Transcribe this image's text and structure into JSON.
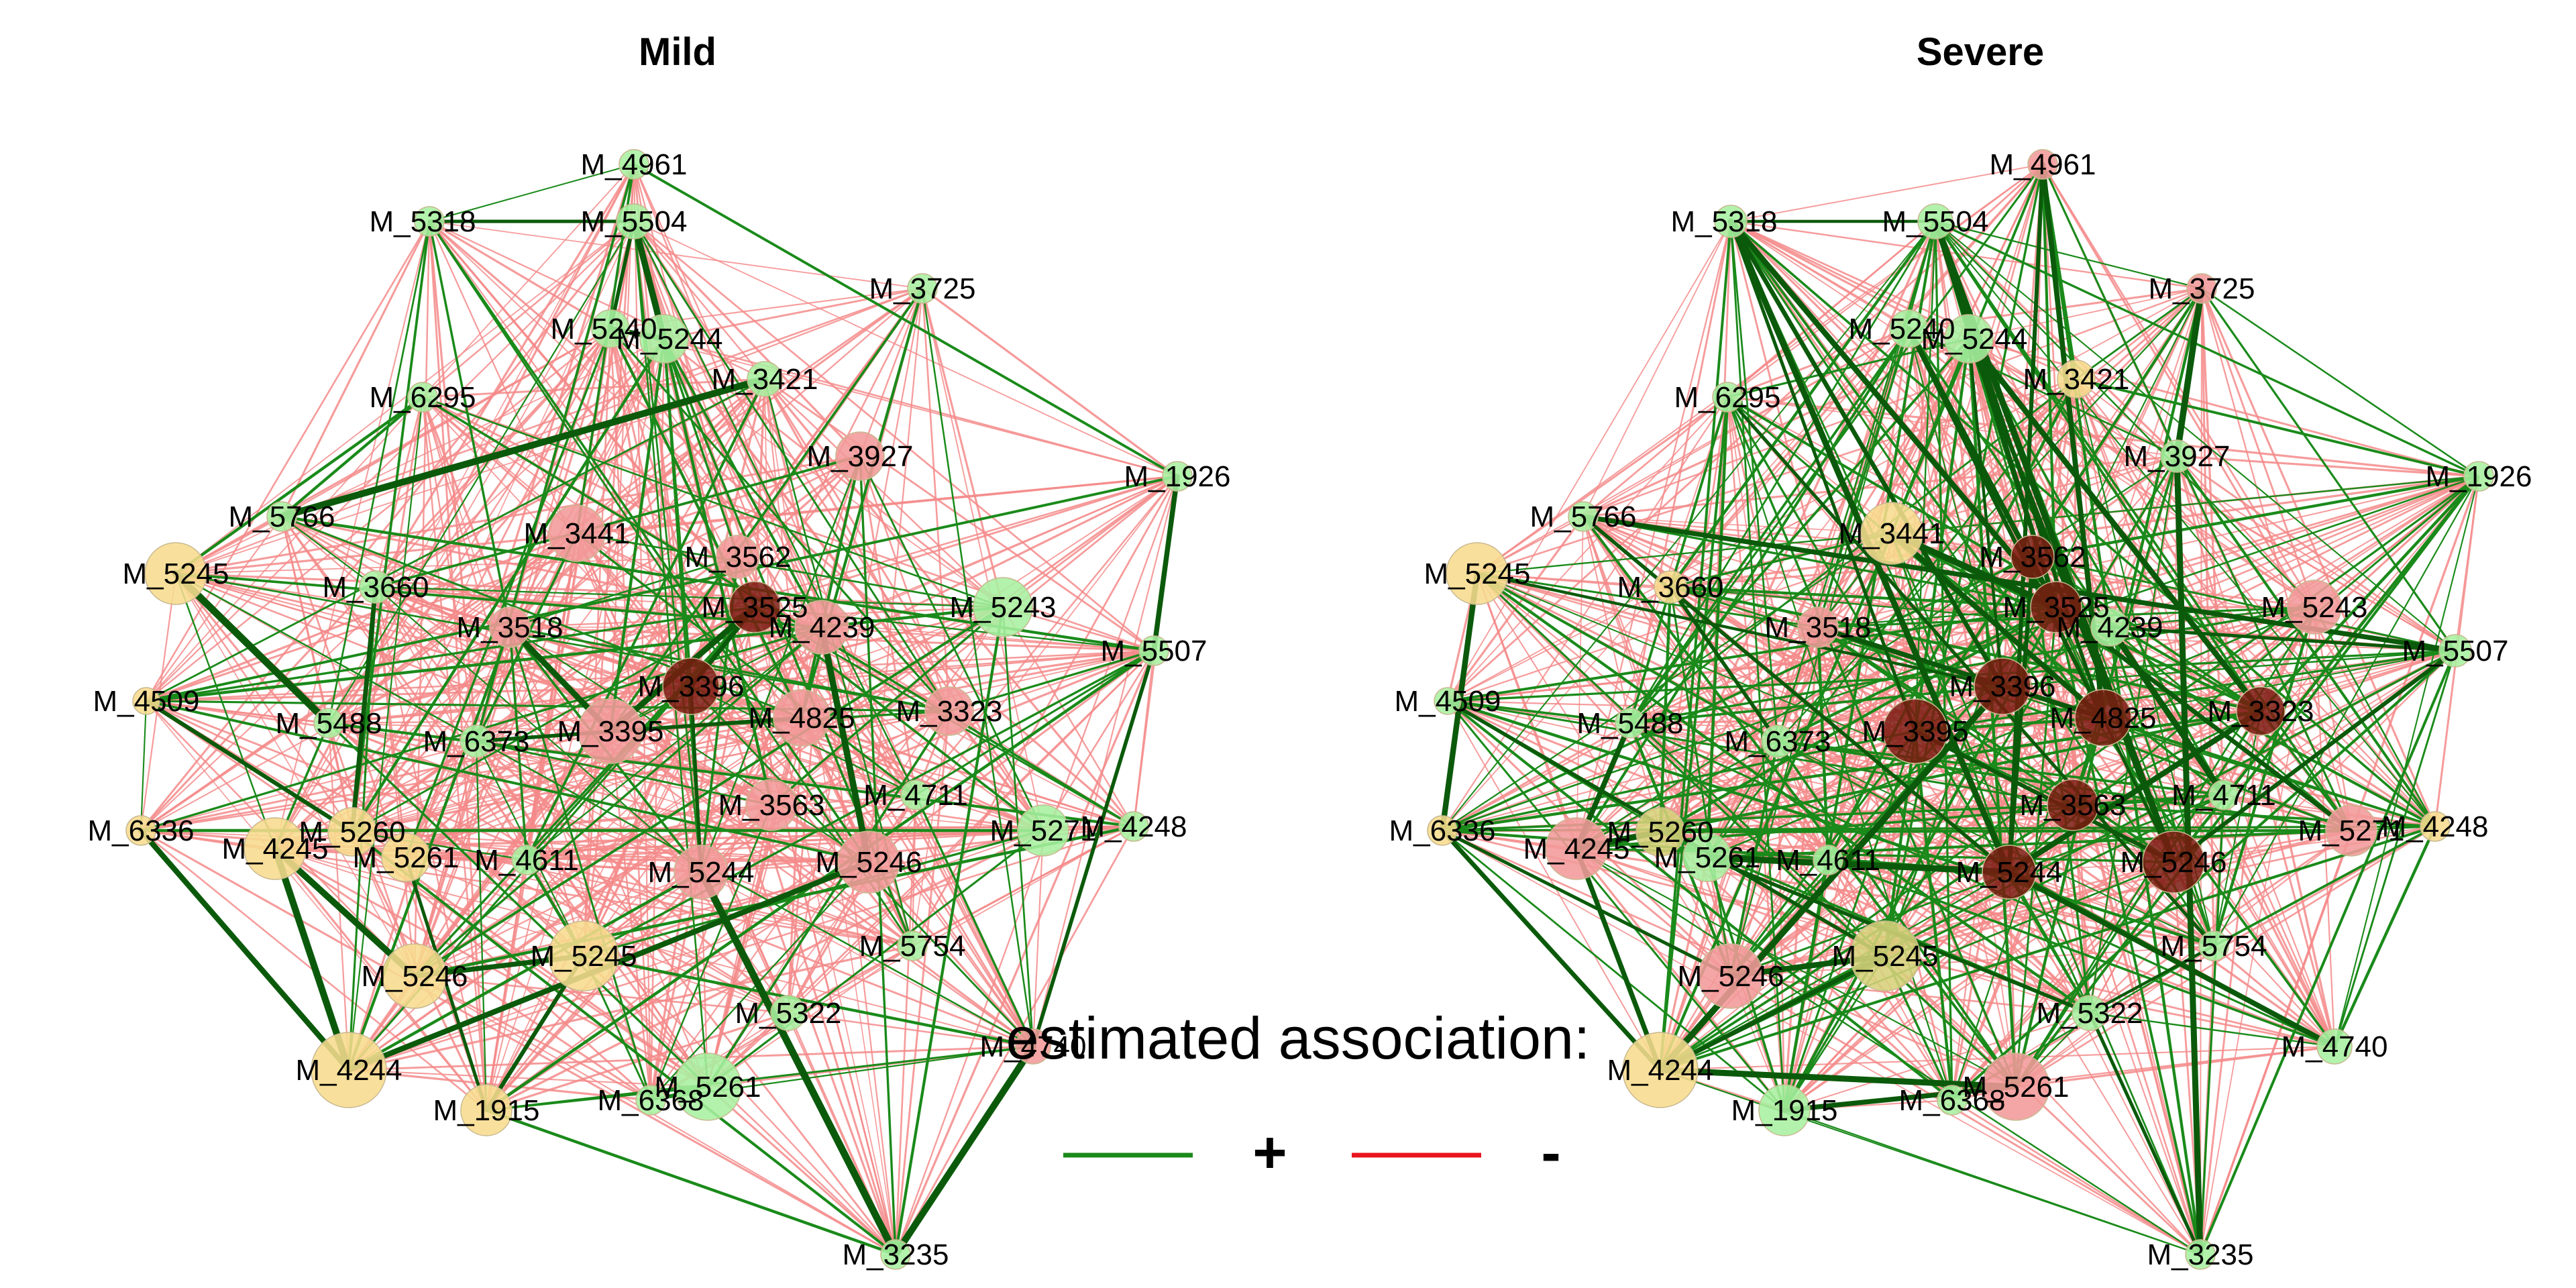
{
  "panels": [
    {
      "title": "Mild"
    },
    {
      "title": "Severe"
    }
  ],
  "legend": {
    "title": "estimated association:",
    "entries": [
      {
        "sign": "+",
        "color": "#1a8a1a"
      },
      {
        "sign": "-",
        "color": "#e8141e"
      }
    ]
  },
  "colors": {
    "positive_edge": "#1a8a1a",
    "positive_edge_strong": "#0b5a0b",
    "negative_edge": "#f48a8a",
    "node_green": "#a9f0a0",
    "node_yellow": "#f7dc8e",
    "node_red": "#f29a9a",
    "node_darkred": "#7a1a10",
    "node_olive": "#d6d07a"
  },
  "nodes": [
    "M_4961",
    "M_5318",
    "M_5504",
    "M_3725",
    "M_5240",
    "M_5244",
    "M_6295",
    "M_3421",
    "M_3927",
    "M_1926",
    "M_5766",
    "M_3441",
    "M_3562",
    "M_5245",
    "M_3660",
    "M_5243",
    "M_3525",
    "M_4239",
    "M_3518",
    "M_5507",
    "M_4509",
    "M_3396",
    "M_5488",
    "M_3395",
    "M_4825",
    "M_3323",
    "M_6373",
    "M_4711",
    "M_6336",
    "M_5260",
    "M_3563",
    "M_5271",
    "M_4248",
    "M_4245",
    "M_5261",
    "M_4611",
    "M_5244",
    "M_5246",
    "M_5754",
    "M_5246",
    "M_5245",
    "M_5322",
    "M_4740",
    "M_4244",
    "M_5261",
    "M_1915",
    "M_6368",
    "M_3235"
  ],
  "node_colors": {
    "mild": [
      "node_green",
      "node_green",
      "node_green",
      "node_green",
      "node_green",
      "node_green",
      "node_green",
      "node_green",
      "node_red",
      "node_green",
      "node_green",
      "node_red",
      "node_red",
      "node_yellow",
      "node_green",
      "node_green",
      "node_darkred",
      "node_red",
      "node_red",
      "node_green",
      "node_yellow",
      "node_darkred",
      "node_green",
      "node_red",
      "node_red",
      "node_red",
      "node_green",
      "node_green",
      "node_yellow",
      "node_yellow",
      "node_red",
      "node_green",
      "node_green",
      "node_yellow",
      "node_yellow",
      "node_green",
      "node_red",
      "node_red",
      "node_green",
      "node_yellow",
      "node_yellow",
      "node_green",
      "node_red",
      "node_yellow",
      "node_green",
      "node_yellow",
      "node_green",
      "node_green"
    ],
    "severe": [
      "node_red",
      "node_green",
      "node_green",
      "node_red",
      "node_green",
      "node_green",
      "node_green",
      "node_yellow",
      "node_green",
      "node_green",
      "node_green",
      "node_yellow",
      "node_darkred",
      "node_yellow",
      "node_yellow",
      "node_red",
      "node_darkred",
      "node_green",
      "node_red",
      "node_green",
      "node_green",
      "node_darkred",
      "node_green",
      "node_darkred",
      "node_darkred",
      "node_darkred",
      "node_green",
      "node_green",
      "node_yellow",
      "node_olive",
      "node_darkred",
      "node_red",
      "node_yellow",
      "node_red",
      "node_green",
      "node_green",
      "node_darkred",
      "node_darkred",
      "node_green",
      "node_red",
      "node_olive",
      "node_green",
      "node_green",
      "node_yellow",
      "node_red",
      "node_green",
      "node_green",
      "node_green"
    ]
  }
}
